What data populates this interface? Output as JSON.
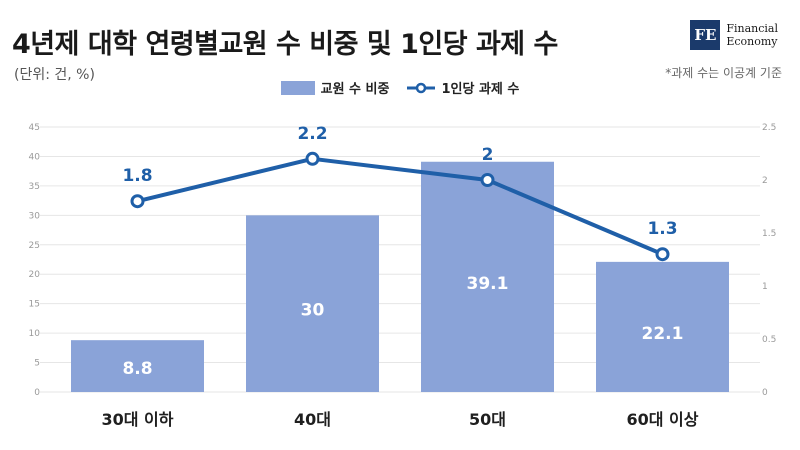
{
  "header": {
    "title": "4년제 대학 연령별교원 수 비중 및 1인당 과제 수",
    "unit": "(단위: 건, %)",
    "note": "*과제 수는 이공계 기준",
    "logo_mark": "FE",
    "logo_line1": "Financial",
    "logo_line2": "Economy"
  },
  "colors": {
    "bar": "#8aa3d8",
    "line": "#1f5fa8",
    "grid": "#e6e6e6",
    "axis_text": "#9a9a9a",
    "bar_label": "#ffffff",
    "line_label": "#1f5fa8"
  },
  "chart_data": {
    "type": "bar",
    "categories": [
      "30대 이하",
      "40대",
      "50대",
      "60대 이상"
    ],
    "series": [
      {
        "name": "교원 수 비중",
        "type": "bar",
        "axis": "left",
        "values": [
          8.8,
          30,
          39.1,
          22.1
        ]
      },
      {
        "name": "1인당 과제 수",
        "type": "line",
        "axis": "right",
        "values": [
          1.8,
          2.2,
          2,
          1.3
        ]
      }
    ],
    "left_axis": {
      "range": [
        0,
        45
      ],
      "ticks": [
        "0",
        "5",
        "10",
        "15",
        "20",
        "25",
        "30",
        "35",
        "40",
        "45"
      ]
    },
    "right_axis": {
      "range": [
        0,
        2.5
      ],
      "ticks": [
        "0",
        "0.5",
        "1",
        "1.5",
        "2",
        "2.5"
      ]
    },
    "grid": true,
    "legend_position": "top-center"
  }
}
